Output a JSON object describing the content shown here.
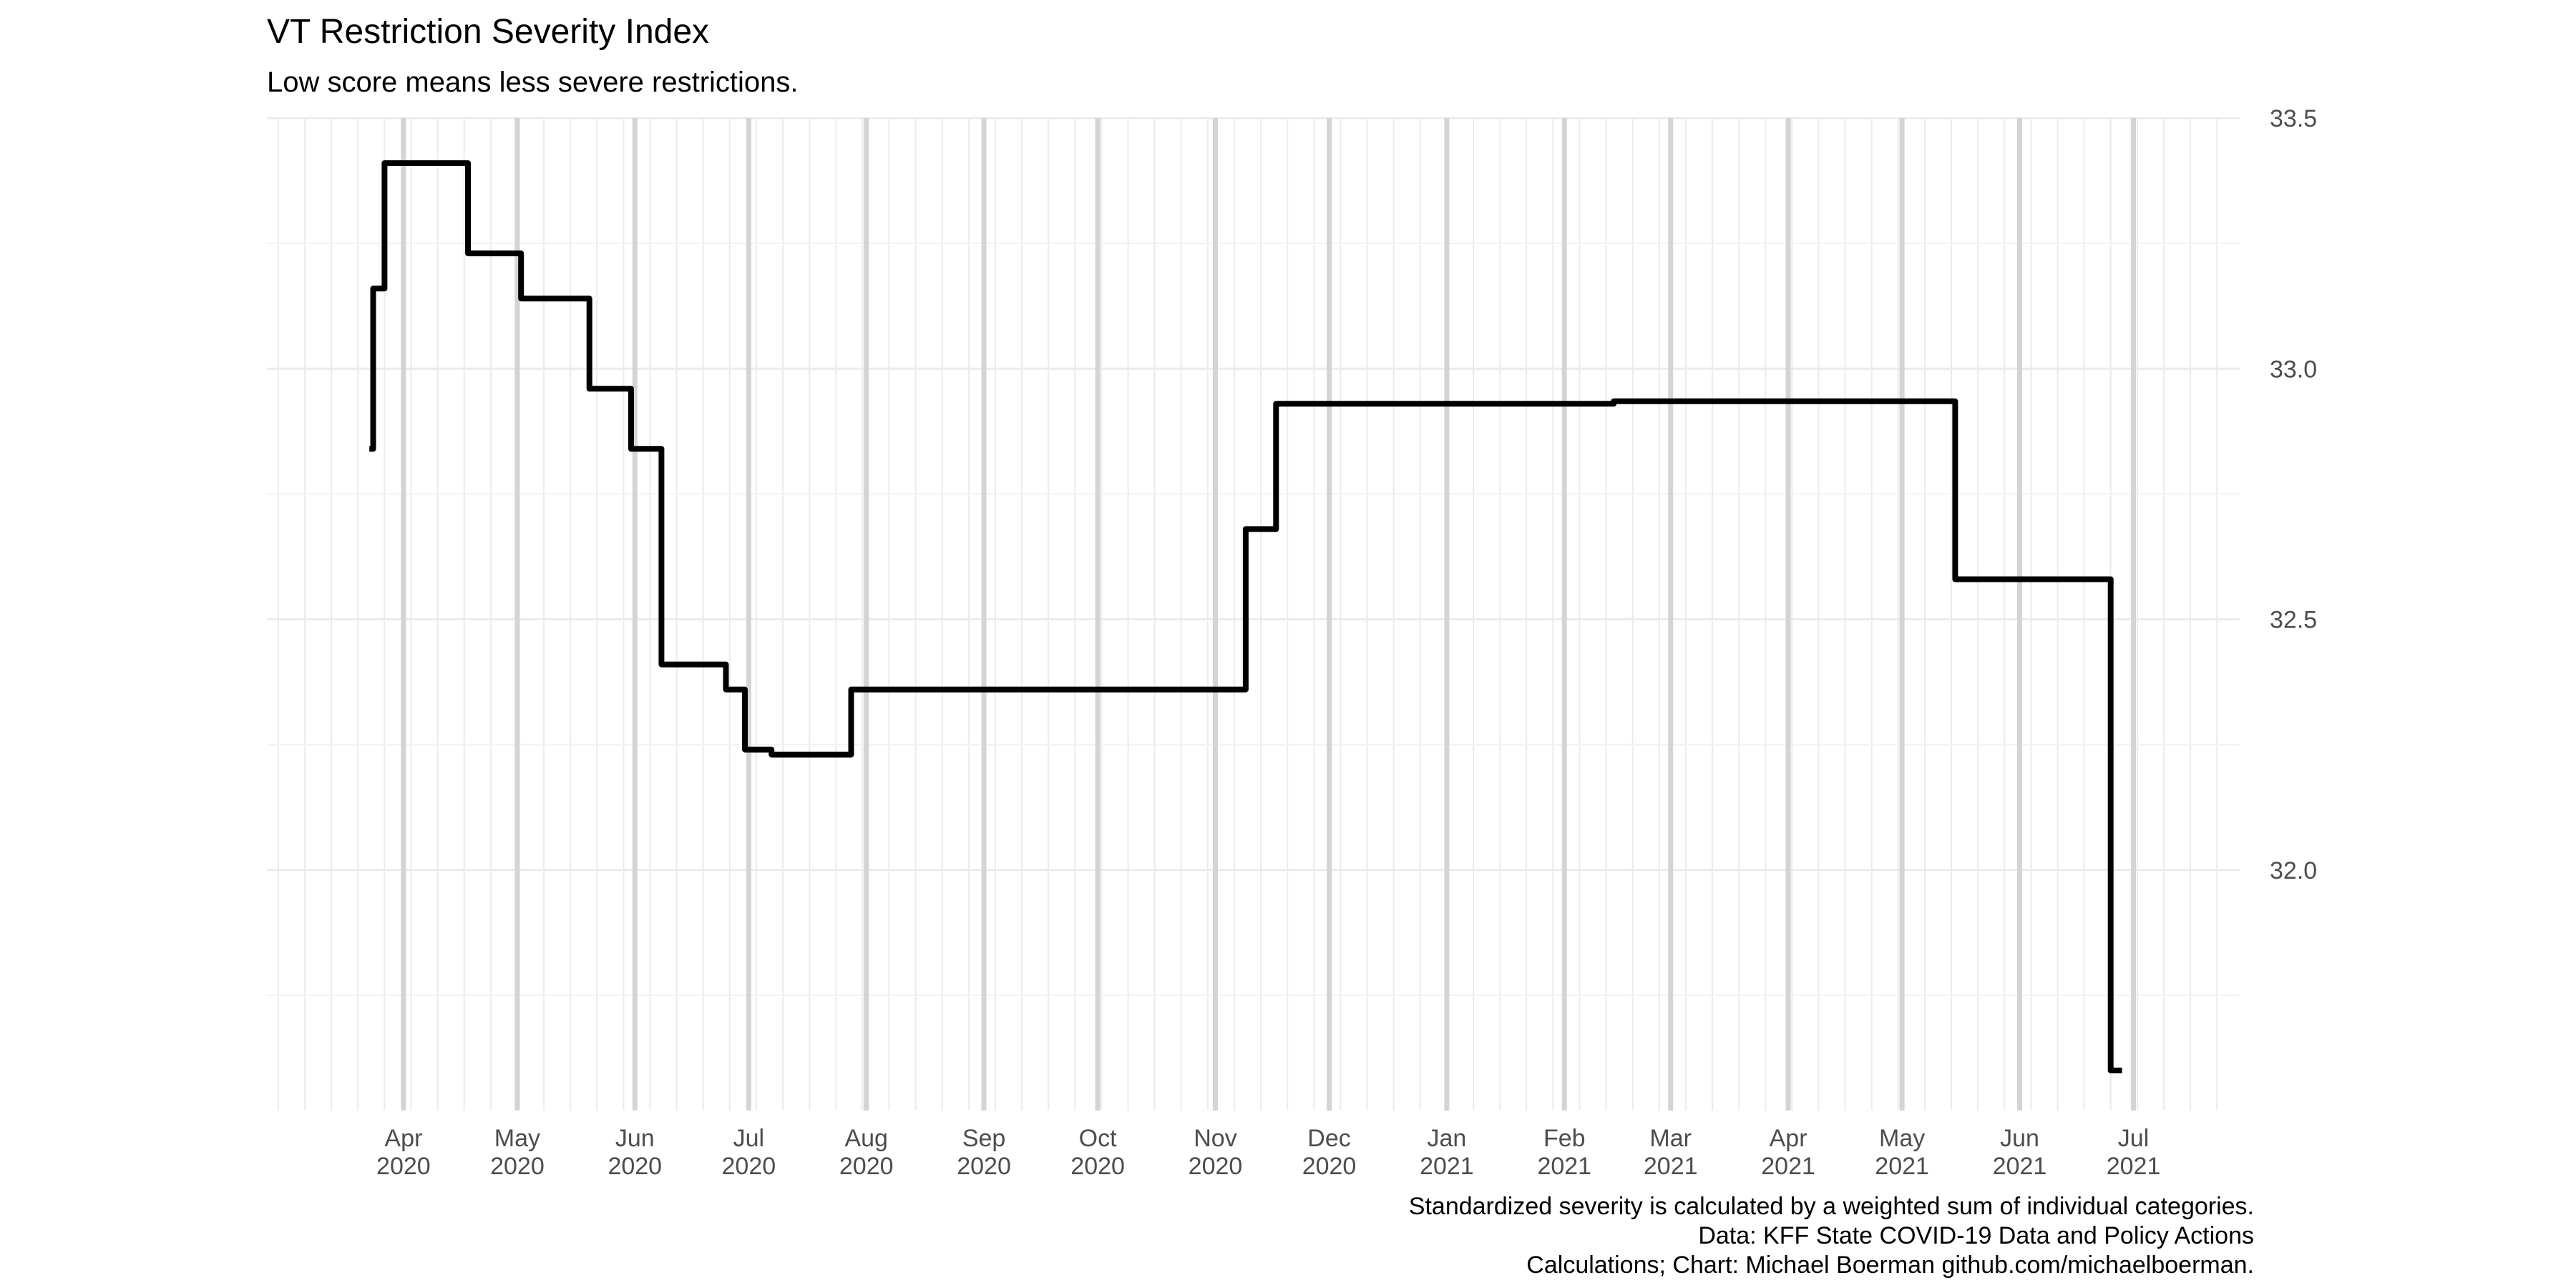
{
  "chart_data": {
    "type": "line",
    "title": "VT Restriction Severity Index",
    "subtitle": "Low score means less severe restrictions.",
    "xlabel": "",
    "ylabel": "",
    "caption": [
      "Standardized severity is calculated by a weighted sum of individual categories.",
      "Data: KFF State COVID-19 Data and Policy Actions",
      "Calculations; Chart: Michael Boerman github.com/michaelboerman."
    ],
    "step": true,
    "ylim": [
      31.52,
      33.5
    ],
    "xlim": [
      "2020-02-25",
      "2021-07-29"
    ],
    "y_ticks": [
      32.0,
      32.5,
      33.0,
      33.5
    ],
    "y_axis_side": "right",
    "grid": true,
    "x_ticks": [
      {
        "date": "2020-04-01",
        "month": "Apr",
        "year": "2020"
      },
      {
        "date": "2020-05-01",
        "month": "May",
        "year": "2020"
      },
      {
        "date": "2020-06-01",
        "month": "Jun",
        "year": "2020"
      },
      {
        "date": "2020-07-01",
        "month": "Jul",
        "year": "2020"
      },
      {
        "date": "2020-08-01",
        "month": "Aug",
        "year": "2020"
      },
      {
        "date": "2020-09-01",
        "month": "Sep",
        "year": "2020"
      },
      {
        "date": "2020-10-01",
        "month": "Oct",
        "year": "2020"
      },
      {
        "date": "2020-11-01",
        "month": "Nov",
        "year": "2020"
      },
      {
        "date": "2020-12-01",
        "month": "Dec",
        "year": "2020"
      },
      {
        "date": "2021-01-01",
        "month": "Jan",
        "year": "2021"
      },
      {
        "date": "2021-02-01",
        "month": "Feb",
        "year": "2021"
      },
      {
        "date": "2021-03-01",
        "month": "Mar",
        "year": "2021"
      },
      {
        "date": "2021-04-01",
        "month": "Apr",
        "year": "2021"
      },
      {
        "date": "2021-05-01",
        "month": "May",
        "year": "2021"
      },
      {
        "date": "2021-06-01",
        "month": "Jun",
        "year": "2021"
      },
      {
        "date": "2021-07-01",
        "month": "Jul",
        "year": "2021"
      }
    ],
    "series": [
      {
        "color": "#000000",
        "points": [
          {
            "x": "2020-03-23",
            "y": 32.84
          },
          {
            "x": "2020-03-24",
            "y": 33.16
          },
          {
            "x": "2020-03-27",
            "y": 33.41
          },
          {
            "x": "2020-04-18",
            "y": 33.23
          },
          {
            "x": "2020-05-02",
            "y": 33.14
          },
          {
            "x": "2020-05-20",
            "y": 32.96
          },
          {
            "x": "2020-05-31",
            "y": 32.84
          },
          {
            "x": "2020-06-08",
            "y": 32.41
          },
          {
            "x": "2020-06-25",
            "y": 32.36
          },
          {
            "x": "2020-06-30",
            "y": 32.24
          },
          {
            "x": "2020-07-07",
            "y": 32.23
          },
          {
            "x": "2020-07-28",
            "y": 32.36
          },
          {
            "x": "2020-11-09",
            "y": 32.68
          },
          {
            "x": "2020-11-17",
            "y": 32.93
          },
          {
            "x": "2021-02-14",
            "y": 32.935
          },
          {
            "x": "2021-05-15",
            "y": 32.58
          },
          {
            "x": "2021-06-25",
            "y": 31.6
          },
          {
            "x": "2021-06-28",
            "y": 31.6
          }
        ]
      }
    ]
  }
}
